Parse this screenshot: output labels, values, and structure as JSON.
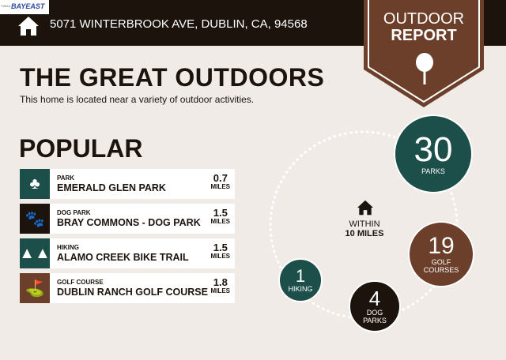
{
  "header": {
    "logo": "BAYEAST",
    "logo_prefix": "©2024",
    "address": "5071 WINTERBROOK AVE, DUBLIN, CA, 94568",
    "badge_line1": "OUTDOOR",
    "badge_line2": "REPORT"
  },
  "title": "THE GREAT OUTDOORS",
  "subtitle": "This home is located near a variety of outdoor activities.",
  "popular": {
    "heading": "POPULAR",
    "items": [
      {
        "category": "PARK",
        "name": "EMERALD GLEN PARK",
        "distance": "0.7",
        "unit": "MILES",
        "icon": "park-icon",
        "color": "#1d4f4a"
      },
      {
        "category": "DOG PARK",
        "name": "BRAY COMMONS - DOG PARK",
        "distance": "1.5",
        "unit": "MILES",
        "icon": "paw-icon",
        "color": "#1c130d"
      },
      {
        "category": "HIKING",
        "name": "ALAMO CREEK BIKE TRAIL",
        "distance": "1.5",
        "unit": "MILES",
        "icon": "trees-icon",
        "color": "#1d4f4a"
      },
      {
        "category": "GOLF COURSE",
        "name": "DUBLIN RANCH GOLF COURSE",
        "distance": "1.8",
        "unit": "MILES",
        "icon": "golf-bag-icon",
        "color": "#6b3f2a"
      }
    ]
  },
  "summary": {
    "within_line1": "WITHIN",
    "within_line2": "10 MILES",
    "stats": [
      {
        "count": "30",
        "label": "PARKS",
        "color": "#1d4f4a"
      },
      {
        "count": "19",
        "label": "GOLF COURSES",
        "color": "#6b3f2a"
      },
      {
        "count": "4",
        "label": "DOG PARKS",
        "color": "#1c130d"
      },
      {
        "count": "1",
        "label": "HIKING",
        "color": "#1d4f4a"
      }
    ]
  }
}
